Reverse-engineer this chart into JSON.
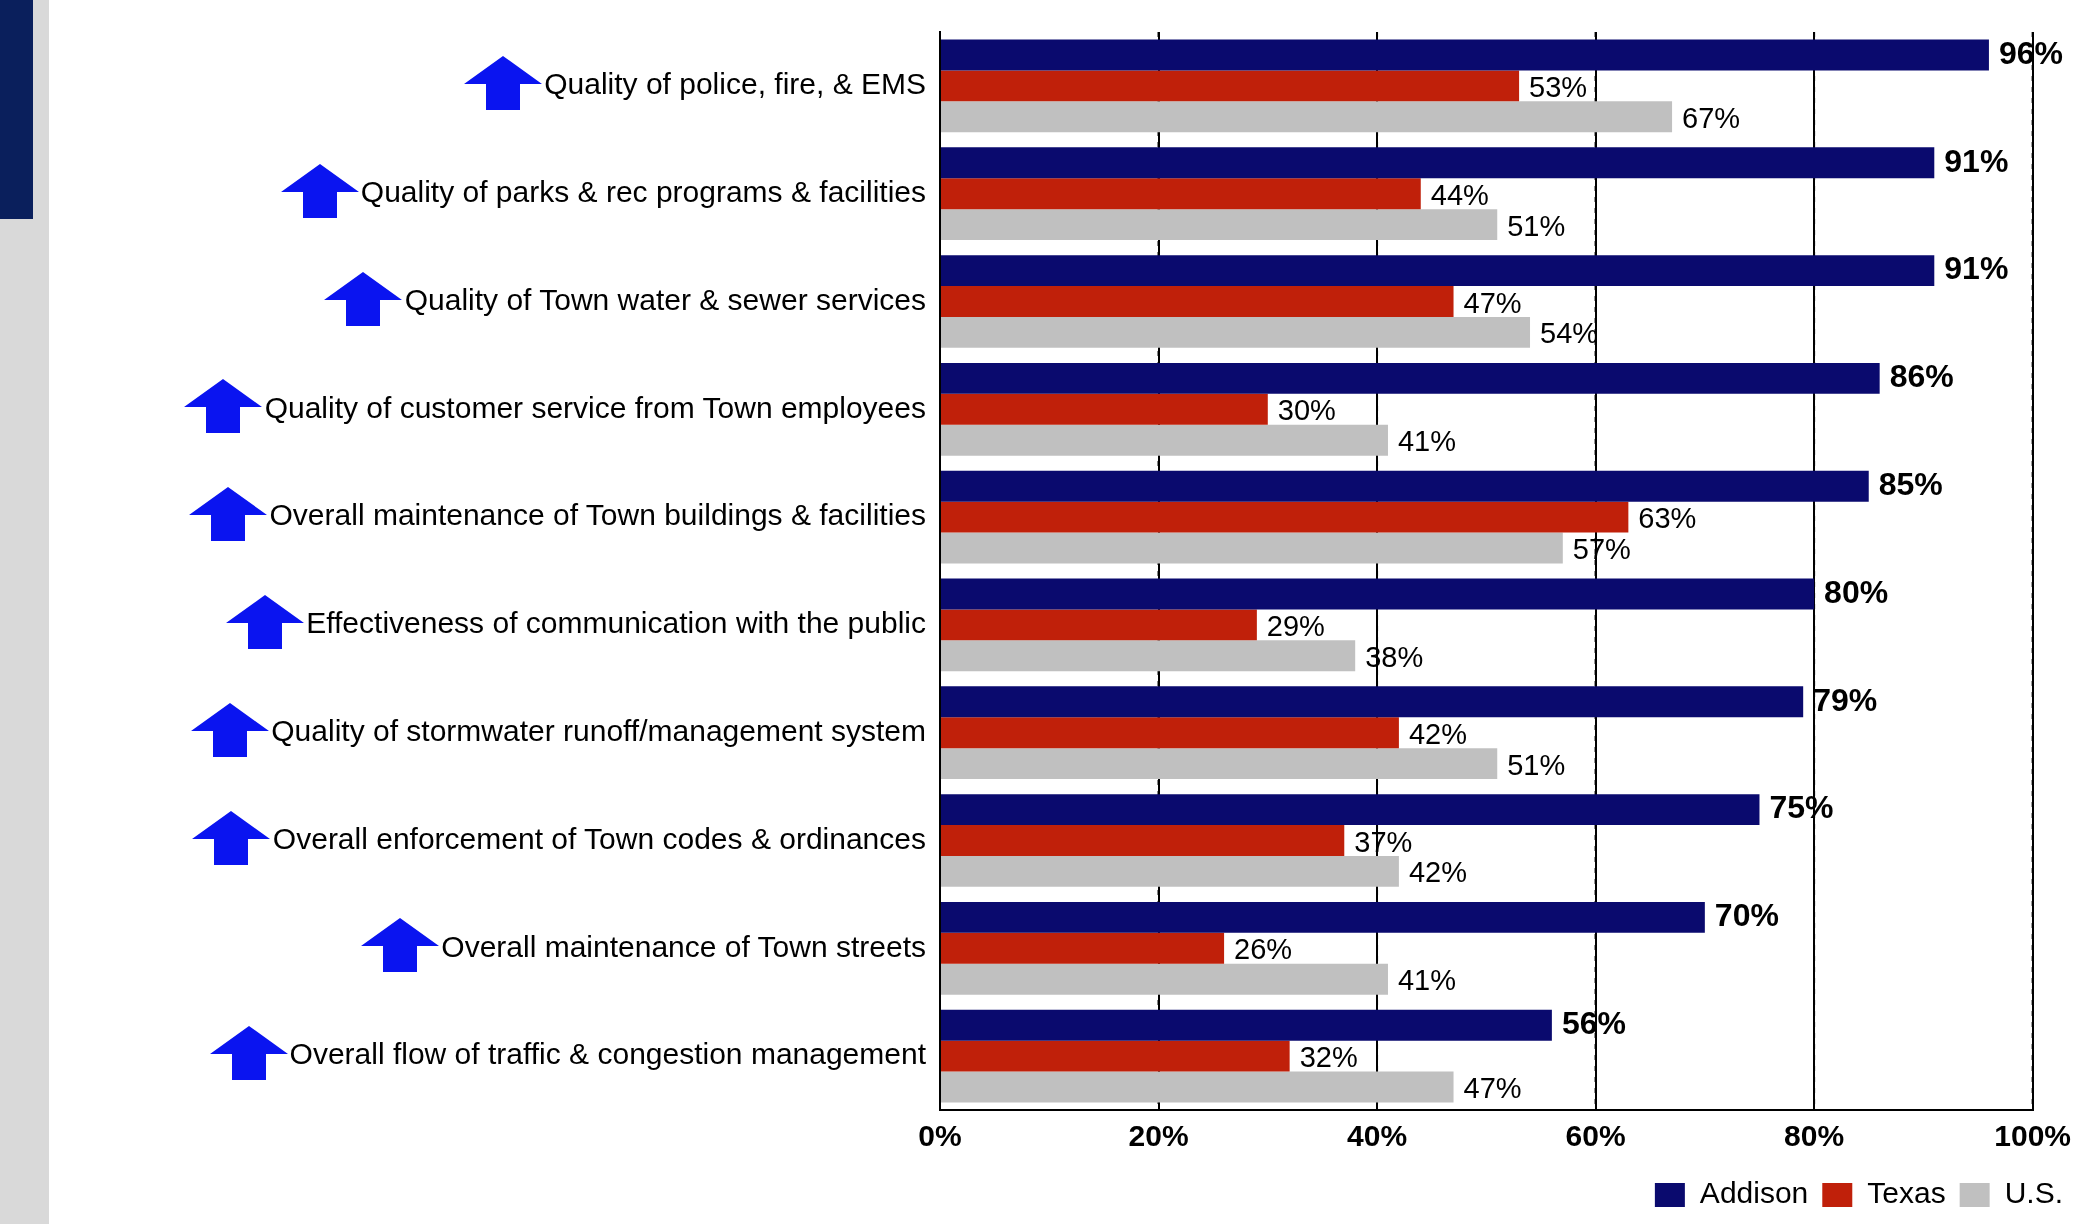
{
  "chart_data": {
    "type": "bar",
    "orientation": "horizontal",
    "categories": [
      "Quality of police, fire, & EMS",
      "Quality of parks & rec programs & facilities",
      "Quality of Town water & sewer services",
      "Quality of customer service from Town employees",
      "Overall maintenance of Town buildings & facilities",
      "Effectiveness of communication with the public",
      "Quality of stormwater runoff/management system",
      "Overall enforcement of Town codes & ordinances",
      "Overall maintenance of Town streets",
      "Overall flow of traffic & congestion management"
    ],
    "series": [
      {
        "name": "Addison",
        "color": "#0a0a6e",
        "values": [
          96,
          91,
          91,
          86,
          85,
          80,
          79,
          75,
          70,
          56
        ],
        "value_labels": [
          "96%",
          "91%",
          "91%",
          "86%",
          "85%",
          "80%",
          "79%",
          "75%",
          "70%",
          "56%"
        ]
      },
      {
        "name": "Texas",
        "color": "#c0200a",
        "values": [
          53,
          44,
          47,
          30,
          63,
          29,
          42,
          37,
          26,
          32
        ],
        "value_labels": [
          "53%",
          "44%",
          "47%",
          "30%",
          "63%",
          "29%",
          "42%",
          "37%",
          "26%",
          "32%"
        ]
      },
      {
        "name": "U.S.",
        "color": "#c0c0c0",
        "values": [
          67,
          51,
          54,
          41,
          57,
          38,
          51,
          42,
          41,
          47
        ],
        "value_labels": [
          "67%",
          "51%",
          "54%",
          "41%",
          "57%",
          "38%",
          "51%",
          "42%",
          "41%",
          "47%"
        ]
      }
    ],
    "xlim": [
      0,
      100
    ],
    "xticks": [
      {
        "value": 0,
        "label": "0%"
      },
      {
        "value": 20,
        "label": "20%"
      },
      {
        "value": 40,
        "label": "40%"
      },
      {
        "value": 60,
        "label": "60%"
      },
      {
        "value": 80,
        "label": "80%"
      },
      {
        "value": 100,
        "label": "100%"
      }
    ],
    "grid": "x",
    "legend": "bottom"
  }
}
